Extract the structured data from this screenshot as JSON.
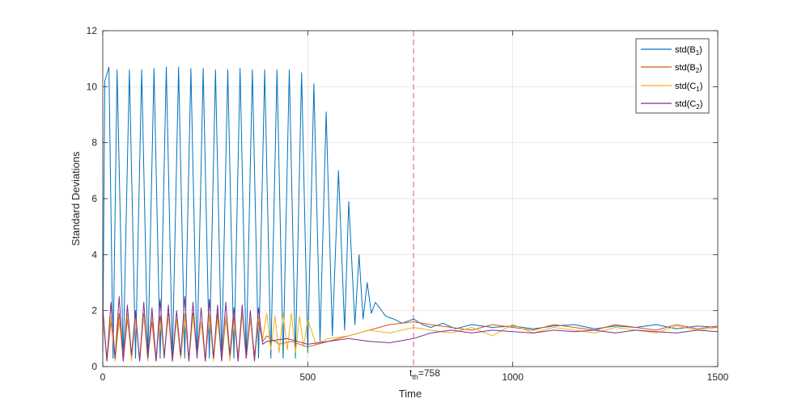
{
  "chart_data": {
    "type": "line",
    "title": "",
    "xlabel": "Time",
    "ylabel": "Standard Deviations",
    "xlim": [
      0,
      1500
    ],
    "ylim": [
      0,
      12
    ],
    "xticks": [
      0,
      500,
      1000,
      1500
    ],
    "yticks": [
      0,
      2,
      4,
      6,
      8,
      10,
      12
    ],
    "xtick_labels": [
      "0",
      "500",
      "1000",
      "1500"
    ],
    "ytick_labels": [
      "0",
      "2",
      "4",
      "6",
      "8",
      "10",
      "12"
    ],
    "grid": true,
    "legend_position": "top-right",
    "threshold": {
      "x": 758,
      "label_main": "t",
      "label_sub": "th",
      "label_value": "=758",
      "color": "#e35a5a"
    },
    "series": [
      {
        "name_main": "std(B",
        "name_sub": "1",
        "name_end": ")",
        "color": "#0072bd",
        "x": [
          0,
          5,
          15,
          25,
          35,
          50,
          65,
          80,
          95,
          110,
          125,
          140,
          155,
          170,
          185,
          200,
          215,
          230,
          245,
          260,
          275,
          290,
          305,
          320,
          335,
          350,
          365,
          380,
          395,
          410,
          425,
          440,
          455,
          470,
          485,
          500,
          515,
          530,
          545,
          560,
          575,
          590,
          600,
          615,
          625,
          635,
          645,
          655,
          665,
          675,
          690,
          710,
          730,
          758,
          780,
          800,
          830,
          860,
          900,
          950,
          1000,
          1050,
          1100,
          1150,
          1200,
          1250,
          1300,
          1350,
          1400,
          1450,
          1500
        ],
        "y": [
          0.5,
          10.2,
          10.7,
          0.3,
          10.6,
          0.3,
          10.6,
          0.3,
          10.6,
          0.3,
          10.65,
          0.3,
          10.7,
          0.3,
          10.7,
          0.3,
          10.65,
          0.3,
          10.65,
          0.3,
          10.6,
          0.3,
          10.6,
          0.3,
          10.65,
          0.3,
          10.6,
          0.3,
          10.6,
          0.3,
          10.6,
          0.3,
          10.6,
          0.3,
          10.5,
          0.5,
          10.1,
          0.9,
          9.1,
          1.1,
          7.0,
          1.3,
          5.9,
          1.5,
          4.0,
          1.7,
          3.0,
          1.9,
          2.3,
          2.1,
          1.8,
          1.7,
          1.55,
          1.7,
          1.5,
          1.4,
          1.55,
          1.35,
          1.5,
          1.4,
          1.45,
          1.35,
          1.45,
          1.5,
          1.35,
          1.45,
          1.4,
          1.5,
          1.35,
          1.45,
          1.4
        ]
      },
      {
        "name_main": "std(B",
        "name_sub": "2",
        "name_end": ")",
        "color": "#d95319",
        "x": [
          0,
          10,
          20,
          30,
          40,
          50,
          60,
          70,
          80,
          90,
          100,
          110,
          120,
          130,
          140,
          150,
          160,
          170,
          180,
          190,
          200,
          210,
          220,
          230,
          240,
          250,
          260,
          270,
          280,
          290,
          300,
          310,
          320,
          330,
          340,
          350,
          360,
          370,
          380,
          390,
          400,
          430,
          460,
          500,
          550,
          600,
          650,
          700,
          758,
          800,
          850,
          900,
          950,
          1000,
          1050,
          1100,
          1150,
          1200,
          1250,
          1300,
          1350,
          1400,
          1450,
          1500
        ],
        "y": [
          1.8,
          0.2,
          1.6,
          0.3,
          1.9,
          0.2,
          1.7,
          0.4,
          1.8,
          0.2,
          1.9,
          0.3,
          1.6,
          0.2,
          1.8,
          0.4,
          1.9,
          0.2,
          1.7,
          0.3,
          1.8,
          0.2,
          1.9,
          0.4,
          1.6,
          0.2,
          1.8,
          0.3,
          1.9,
          0.2,
          1.7,
          0.4,
          1.8,
          0.2,
          1.9,
          0.3,
          1.7,
          0.4,
          1.6,
          0.9,
          1.1,
          0.8,
          0.9,
          0.7,
          0.9,
          1.1,
          1.3,
          1.5,
          1.6,
          1.5,
          1.4,
          1.3,
          1.5,
          1.4,
          1.3,
          1.5,
          1.4,
          1.3,
          1.5,
          1.4,
          1.3,
          1.5,
          1.35,
          1.45
        ]
      },
      {
        "name_main": "std(C",
        "name_sub": "1",
        "name_end": ")",
        "color": "#edb120",
        "x": [
          0,
          10,
          20,
          30,
          40,
          50,
          60,
          70,
          80,
          90,
          100,
          110,
          120,
          130,
          140,
          150,
          160,
          170,
          180,
          190,
          200,
          210,
          220,
          230,
          240,
          250,
          260,
          270,
          280,
          290,
          300,
          310,
          320,
          330,
          340,
          350,
          360,
          370,
          380,
          390,
          400,
          410,
          420,
          430,
          440,
          450,
          460,
          470,
          480,
          490,
          500,
          520,
          550,
          600,
          650,
          700,
          758,
          800,
          850,
          900,
          950,
          1000,
          1050,
          1100,
          1150,
          1200,
          1250,
          1300,
          1350,
          1400,
          1450,
          1500
        ],
        "y": [
          1.7,
          0.3,
          1.8,
          0.2,
          1.6,
          0.4,
          1.9,
          0.2,
          1.7,
          0.3,
          1.8,
          0.2,
          1.9,
          0.3,
          1.6,
          0.4,
          1.8,
          0.2,
          1.7,
          0.3,
          1.9,
          0.2,
          1.8,
          0.4,
          1.6,
          0.3,
          1.9,
          0.2,
          1.7,
          0.3,
          1.8,
          0.2,
          1.6,
          0.4,
          1.9,
          0.3,
          1.7,
          0.2,
          1.8,
          1.0,
          1.9,
          0.6,
          1.8,
          0.5,
          1.9,
          0.6,
          1.9,
          0.5,
          1.8,
          0.7,
          1.7,
          0.8,
          1.0,
          1.1,
          1.3,
          1.2,
          1.4,
          1.3,
          1.2,
          1.4,
          1.1,
          1.5,
          1.2,
          1.4,
          1.3,
          1.2,
          1.4,
          1.3,
          1.2,
          1.45,
          1.3,
          1.4
        ]
      },
      {
        "name_main": "std(C",
        "name_sub": "2",
        "name_end": ")",
        "color": "#7e2f8e",
        "x": [
          0,
          10,
          20,
          30,
          40,
          50,
          60,
          70,
          80,
          90,
          100,
          110,
          120,
          130,
          140,
          150,
          160,
          170,
          180,
          190,
          200,
          210,
          220,
          230,
          240,
          250,
          260,
          270,
          280,
          290,
          300,
          310,
          320,
          330,
          340,
          350,
          360,
          370,
          380,
          390,
          400,
          450,
          500,
          550,
          600,
          650,
          700,
          758,
          800,
          850,
          900,
          950,
          1000,
          1050,
          1100,
          1150,
          1200,
          1250,
          1300,
          1350,
          1400,
          1450,
          1500
        ],
        "y": [
          2.1,
          0.2,
          2.3,
          0.3,
          2.5,
          0.2,
          2.2,
          0.4,
          2.0,
          0.2,
          2.3,
          0.3,
          2.1,
          0.2,
          2.4,
          0.3,
          2.2,
          0.2,
          2.0,
          0.4,
          2.5,
          0.2,
          2.3,
          0.3,
          2.1,
          0.2,
          2.4,
          0.3,
          2.2,
          0.2,
          2.3,
          0.4,
          2.1,
          0.2,
          2.2,
          0.3,
          2.0,
          0.2,
          2.1,
          0.8,
          0.9,
          1.0,
          0.8,
          0.9,
          1.0,
          0.9,
          0.85,
          1.0,
          1.2,
          1.3,
          1.2,
          1.3,
          1.25,
          1.2,
          1.3,
          1.25,
          1.3,
          1.2,
          1.3,
          1.25,
          1.2,
          1.3,
          1.25
        ]
      }
    ]
  }
}
